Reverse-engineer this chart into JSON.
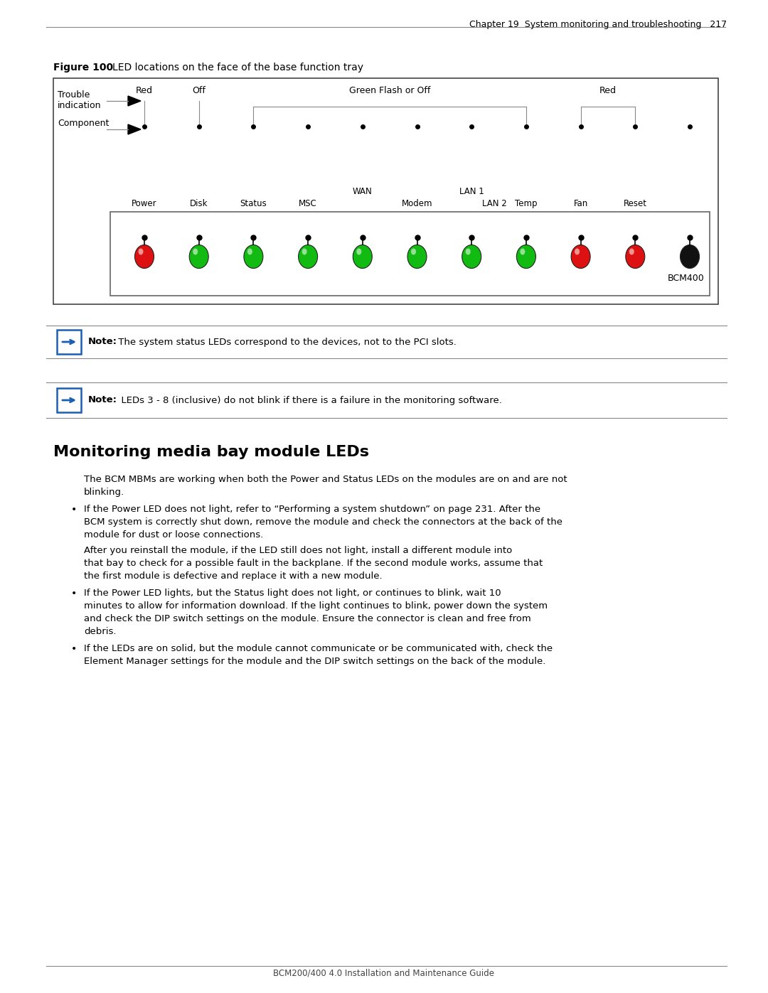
{
  "page_title_right": "Chapter 19  System monitoring and troubleshooting   217",
  "figure_label": "Figure 100",
  "figure_caption": "LED locations on the face of the base function tray",
  "footer_text": "BCM200/400 4.0 Installation and Maintenance Guide",
  "note1_text_bold": "Note:",
  "note1_text": " The system status LEDs correspond to the devices, not to the PCI slots.",
  "note2_text_bold": "Note:",
  "note2_text": "  LEDs 3 - 8 (inclusive) do not blink if there is a failure in the monitoring software.",
  "section_title": "Monitoring media bay module LEDs",
  "intro_text": "The BCM MBMs are working when both the Power and Status LEDs on the modules are on and are not blinking.",
  "bullet1_pre": "If the Power LED does not light, refer to ",
  "bullet1_link": "“Performing a system shutdown” on page 231.",
  "bullet1_post": " After the BCM system is correctly shut down, remove the module and check the connectors at the back of the module for dust or loose connections.",
  "bullet1_cont": "After you reinstall the module, if the LED still does not light, install a different module into that bay to check for a possible fault in the backplane. If the second module works, assume that the first module is defective and replace it with a new module.",
  "bullet2": "If the Power LED lights, but the Status light does not light, or continues to blink, wait 10 minutes to allow for information download. If the light continues to blink, power down the system and check the DIP switch settings on the module. Ensure the connector is clean and free from debris.",
  "bullet3": "If the LEDs are on solid, but the module cannot communicate or be communicated with, check the Element Manager settings for the module and the DIP switch settings on the back of the module.",
  "led_colors": [
    "red",
    "green",
    "green",
    "green",
    "green",
    "green",
    "green",
    "green",
    "red",
    "red",
    "black"
  ],
  "trouble_label": "Red",
  "off_label": "Off",
  "green_flash_label": "Green Flash or Off",
  "red_right_label": "Red",
  "bcm400_label": "BCM400",
  "bg_color": "#ffffff",
  "note_box_border": "#1a5fb4",
  "note_arrow_color": "#1a5fb4",
  "link_color": "#cc3300"
}
